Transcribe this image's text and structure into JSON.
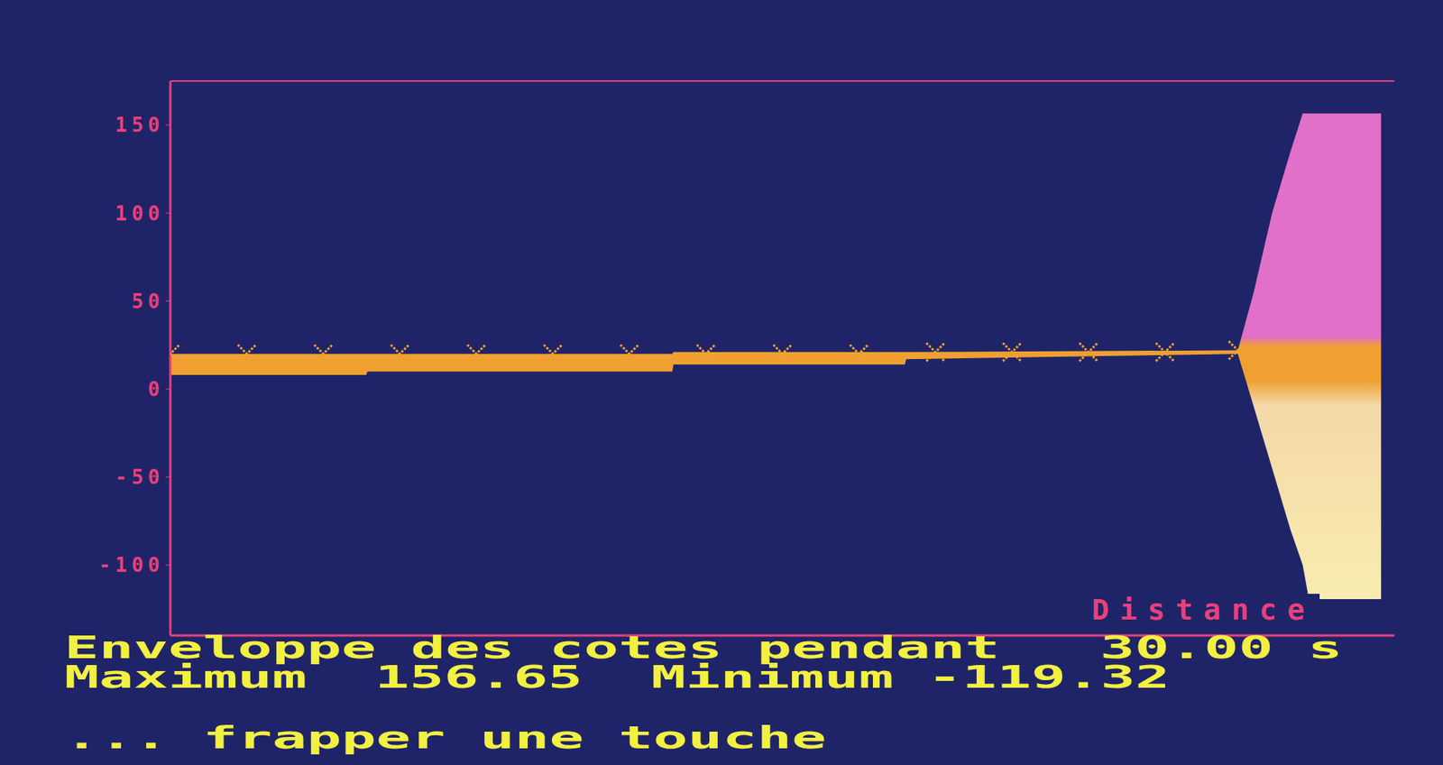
{
  "chart_data": {
    "type": "area",
    "x_label": "Distance",
    "xlim": [
      0,
      100
    ],
    "ylim": [
      -140,
      175
    ],
    "yticks": [
      -100,
      -50,
      0,
      50,
      100,
      150
    ],
    "tick_labels": "y",
    "grid": false,
    "envelope": {
      "color": "#f0a030",
      "x": [
        0,
        16,
        16.1,
        41,
        41.1,
        60,
        60.1,
        87.2,
        88.5,
        90,
        91.5,
        92.5,
        93,
        98.9
      ],
      "min": [
        8,
        8,
        10,
        10,
        14,
        14,
        17,
        20,
        -10,
        -45,
        -80,
        -100,
        -119.32,
        -119.32
      ],
      "max": [
        20,
        20,
        20,
        20,
        21,
        21,
        21,
        22,
        55,
        100,
        135,
        156.65,
        156.65,
        156.65
      ]
    },
    "markers": {
      "marker": "x",
      "color": "#f0a030",
      "x": [
        0,
        6.25,
        12.5,
        18.75,
        25,
        31.25,
        37.5,
        43.75,
        50,
        56.25,
        62.5,
        68.75,
        75,
        81.25,
        87.2
      ],
      "y": [
        20,
        20,
        20,
        20,
        20,
        20,
        20,
        20,
        20,
        20,
        21,
        21,
        21,
        21,
        22
      ]
    },
    "annotations": {
      "line1": "Enveloppe des cotes pendant",
      "duration": 30,
      "duration_unit": "s",
      "max_label": "Maximum",
      "maximum": 156.65,
      "min_label": "Minimum",
      "minimum": -119.32,
      "prompt": "... frapper une touche"
    }
  }
}
